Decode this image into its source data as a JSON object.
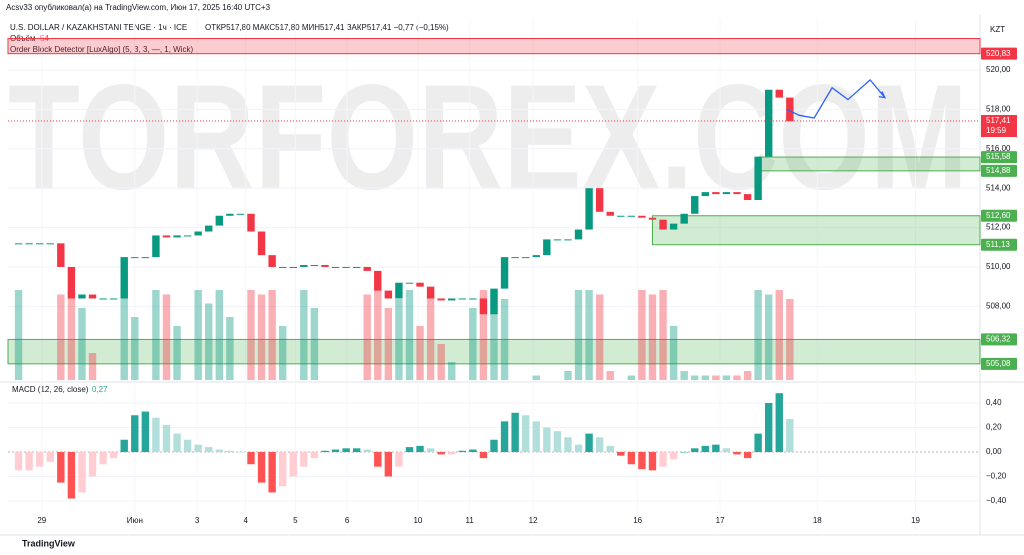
{
  "header": {
    "publisher": "Acsv33 опубликовал(а) на TradingView.com, Июн 17, 2025 16:40 UTC+3",
    "symbol": "U.S. DOLLAR / KAZAKHSTANI TENGE · 1ч · ICE",
    "ohlc": "ОТКР517,80 МАКС517,80 МИН517,41 ЗАКР517,41 −0,77 (−0,15%)",
    "volume_label": "Объём",
    "volume_value": "54",
    "indicator": "Order Block Detector [LuxAlgo] (5, 3, 3, —, 1, Wick)",
    "currency": "KZT",
    "brand": "TradingView",
    "watermark": "TORFOREX.COM"
  },
  "chart_data": {
    "type": "candlestick",
    "close": [
      511.2,
      511.2,
      511.2,
      511.2,
      510.0,
      508.4,
      508.6,
      508.4,
      508.4,
      508.4,
      510.5,
      510.5,
      510.5,
      511.6,
      511.5,
      511.6,
      511.6,
      511.8,
      512.1,
      512.6,
      512.7,
      512.7,
      511.8,
      510.6,
      510.0,
      510.0,
      510.0,
      510.1,
      510.1,
      510.0,
      510.0,
      510.0,
      510.0,
      509.8,
      508.8,
      508.4,
      509.2,
      509.2,
      509.0,
      508.4,
      508.3,
      508.4,
      508.4,
      508.4,
      507.6,
      508.9,
      510.5,
      510.5,
      510.5,
      510.6,
      511.4,
      511.4,
      511.4,
      511.9,
      514.0,
      512.8,
      512.6,
      512.6,
      512.6,
      512.5,
      512.4,
      511.9,
      512.2,
      512.7,
      513.6,
      513.8,
      513.7,
      513.8,
      513.7,
      513.4,
      515.6,
      519.0,
      518.6,
      517.4
    ],
    "volume": [
      100,
      0,
      0,
      0,
      95,
      100,
      80,
      30,
      0,
      0,
      100,
      70,
      0,
      100,
      95,
      60,
      0,
      100,
      85,
      100,
      70,
      0,
      100,
      95,
      100,
      60,
      0,
      100,
      80,
      0,
      0,
      0,
      0,
      95,
      100,
      80,
      90,
      100,
      60,
      95,
      40,
      20,
      0,
      80,
      100,
      100,
      90,
      0,
      0,
      5,
      0,
      0,
      10,
      100,
      100,
      95,
      10,
      0,
      5,
      100,
      95,
      100,
      60,
      10,
      5,
      5,
      5,
      5,
      5,
      10,
      100,
      95,
      100,
      90
    ],
    "volume_ylim": [
      0,
      100
    ],
    "xlim": [
      -1,
      91
    ],
    "xticks": [
      {
        "value": 2.2,
        "label": "29"
      },
      {
        "value": 11,
        "label": "Июн"
      },
      {
        "value": 16.9,
        "label": "3"
      },
      {
        "value": 21.5,
        "label": "4"
      },
      {
        "value": 26.2,
        "label": "5"
      },
      {
        "value": 31.1,
        "label": "6"
      },
      {
        "value": 37.8,
        "label": "10"
      },
      {
        "value": 42.7,
        "label": "11"
      },
      {
        "value": 48.7,
        "label": "12"
      },
      {
        "value": 58.6,
        "label": "16"
      },
      {
        "value": 66.4,
        "label": "17"
      },
      {
        "value": 75.6,
        "label": "18"
      },
      {
        "value": 84.9,
        "label": "19"
      }
    ],
    "ylim": [
      504.26,
      522.54
    ],
    "yticks": [
      {
        "value": 520,
        "label": "520,00"
      },
      {
        "value": 518,
        "label": "518,00"
      },
      {
        "value": 516,
        "label": "516,00"
      },
      {
        "value": 514,
        "label": "514,00"
      },
      {
        "value": 512,
        "label": "512,00"
      },
      {
        "value": 510,
        "label": "510,00"
      },
      {
        "value": 508,
        "label": "508,00"
      }
    ],
    "zones": [
      {
        "from": -1,
        "low": 520.83,
        "high": 521.6,
        "color": "#f23645",
        "low_label": "520,83"
      },
      {
        "from": 70,
        "low": 514.88,
        "high": 515.58,
        "color": "#4caf50",
        "low_label": "514,88",
        "high_label": "515,58"
      },
      {
        "from": 60,
        "low": 511.13,
        "high": 512.6,
        "color": "#4caf50",
        "low_label": "511,13",
        "high_label": "512,60"
      },
      {
        "from": -1,
        "low": 505.08,
        "high": 506.32,
        "color": "#4caf50",
        "low_label": "505,08",
        "high_label": "506,32"
      }
    ],
    "last": {
      "value": 517.41,
      "label": "517,41",
      "time": "19:59",
      "color": "#f23645"
    },
    "forecast": {
      "x": [
        72.7,
        73.9,
        75.3,
        77.0,
        78.5,
        80.6,
        82.0
      ],
      "y": [
        518.0,
        517.7,
        517.56,
        519.1,
        518.5,
        519.5,
        518.6
      ],
      "color": "#2962ff"
    },
    "macd": {
      "title": "MACD (12, 26, close)",
      "last": "0,27",
      "values": [
        -0.15,
        -0.15,
        -0.12,
        -0.08,
        -0.25,
        -0.38,
        -0.33,
        -0.2,
        -0.1,
        -0.05,
        0.1,
        0.3,
        0.33,
        0.28,
        0.22,
        0.15,
        0.1,
        0.06,
        0.04,
        0.02,
        0.01,
        0.0,
        -0.1,
        -0.25,
        -0.33,
        -0.28,
        -0.2,
        -0.12,
        -0.05,
        0.01,
        0.02,
        0.03,
        0.03,
        0.02,
        -0.12,
        -0.2,
        -0.12,
        0.04,
        0.05,
        0.03,
        -0.02,
        -0.02,
        0.01,
        0.02,
        -0.05,
        0.1,
        0.25,
        0.32,
        0.3,
        0.25,
        0.2,
        0.17,
        0.12,
        0.06,
        0.15,
        0.12,
        0.05,
        -0.03,
        -0.1,
        -0.14,
        -0.15,
        -0.12,
        -0.06,
        0.0,
        0.03,
        0.05,
        0.06,
        0.03,
        -0.02,
        -0.05,
        0.15,
        0.4,
        0.48,
        0.27
      ],
      "ylim": [
        -0.637,
        0.547
      ],
      "yticks": [
        {
          "value": 0.4,
          "label": "0,40"
        },
        {
          "value": 0.2,
          "label": "0,20"
        },
        {
          "value": 0,
          "label": "0,00"
        },
        {
          "value": -0.2,
          "label": "−0,20"
        },
        {
          "value": -0.4,
          "label": "−0,40"
        }
      ]
    }
  }
}
